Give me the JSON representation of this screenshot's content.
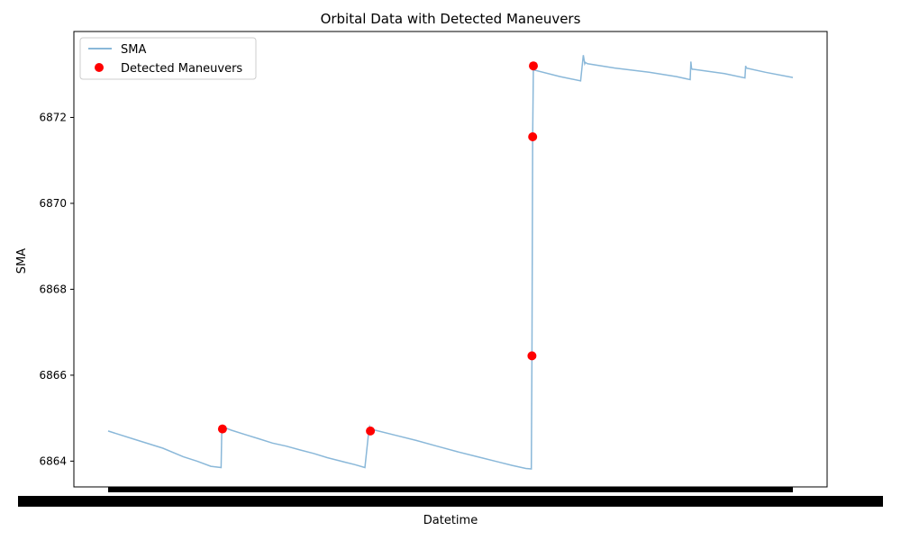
{
  "chart_data": {
    "type": "line",
    "title": "Orbital Data with Detected Maneuvers",
    "xlabel": "Datetime",
    "ylabel": "SMA",
    "yticks": [
      6864,
      6866,
      6868,
      6870,
      6872
    ],
    "ylim": [
      6863.4,
      6874.0
    ],
    "xlim": [
      0,
      1000
    ],
    "x_ticks_illegible": true,
    "grid": false,
    "legend_position": "upper left",
    "series": [
      {
        "name": "SMA",
        "kind": "line",
        "color": "#8ab8d9",
        "x": [
          0,
          40,
          80,
          110,
          130,
          150,
          165,
          166,
          167,
          180,
          200,
          220,
          240,
          260,
          280,
          300,
          320,
          340,
          360,
          375,
          380,
          382,
          383,
          384,
          390,
          420,
          450,
          480,
          510,
          540,
          570,
          590,
          610,
          618,
          619,
          620,
          621,
          622,
          623,
          660,
          690,
          694,
          696,
          697,
          700,
          740,
          790,
          830,
          850,
          851,
          852,
          853,
          855,
          900,
          930,
          931,
          932,
          960,
          1000
        ],
        "y": [
          6864.7,
          6864.5,
          6864.3,
          6864.1,
          6864.0,
          6863.88,
          6863.85,
          6864.78,
          6864.8,
          6864.72,
          6864.62,
          6864.52,
          6864.42,
          6864.35,
          6864.26,
          6864.18,
          6864.08,
          6864.0,
          6863.92,
          6863.85,
          6864.6,
          6864.8,
          6864.76,
          6864.74,
          6864.72,
          6864.6,
          6864.48,
          6864.35,
          6864.22,
          6864.1,
          6863.98,
          6863.9,
          6863.83,
          6863.82,
          6866.45,
          6871.55,
          6873.2,
          6873.12,
          6873.1,
          6872.95,
          6872.85,
          6873.45,
          6873.25,
          6873.28,
          6873.25,
          6873.15,
          6873.05,
          6872.95,
          6872.88,
          6873.3,
          6873.15,
          6873.12,
          6873.12,
          6873.02,
          6872.92,
          6873.2,
          6873.15,
          6873.05,
          6872.93
        ]
      },
      {
        "name": "Detected Maneuvers",
        "kind": "scatter",
        "color": "#ff0000",
        "x": [
          167,
          383,
          619,
          620,
          621
        ],
        "y": [
          6864.75,
          6864.7,
          6866.45,
          6871.55,
          6873.2
        ]
      }
    ]
  }
}
